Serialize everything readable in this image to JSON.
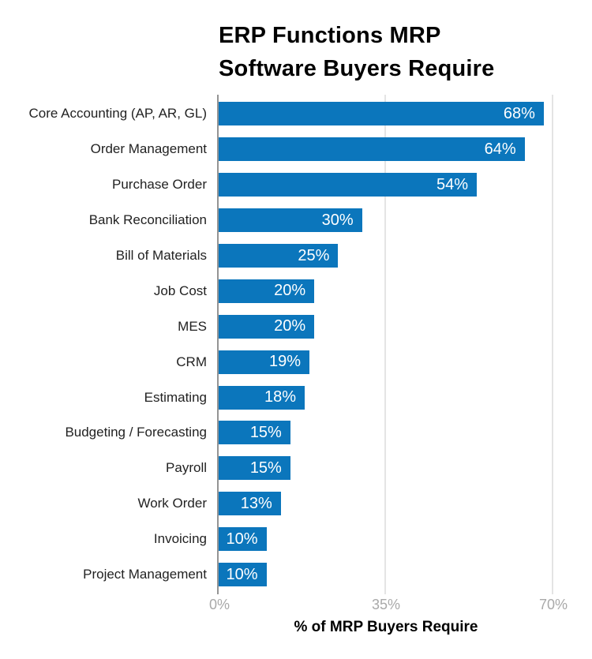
{
  "title": {
    "line1": "ERP Functions MRP",
    "line2": "Software Buyers Require"
  },
  "chart_data": {
    "type": "bar",
    "orientation": "horizontal",
    "title": "ERP Functions MRP Software Buyers Require",
    "categories": [
      "Core Accounting (AP, AR, GL)",
      "Order Management",
      "Purchase Order",
      "Bank Reconciliation",
      "Bill of Materials",
      "Job Cost",
      "MES",
      "CRM",
      "Estimating",
      "Budgeting / Forecasting",
      "Payroll",
      "Work Order",
      "Invoicing",
      "Project Management"
    ],
    "values": [
      68,
      64,
      54,
      30,
      25,
      20,
      20,
      19,
      18,
      15,
      15,
      13,
      10,
      10
    ],
    "value_labels": [
      "68%",
      "64%",
      "54%",
      "30%",
      "25%",
      "20%",
      "20%",
      "19%",
      "18%",
      "15%",
      "15%",
      "13%",
      "10%",
      "10%"
    ],
    "xlabel": "% of MRP Buyers Require",
    "xlim": [
      0,
      70
    ],
    "xticks": [
      "0%",
      "35%",
      "70%"
    ],
    "grid": "vertical-gridlines-at-35-and-70",
    "legend": "none",
    "bar_color": "#0B76BC",
    "value_label_color": "#FFFFFF",
    "axis_line_color": "#949494",
    "gridline_color": "#E4E4E4",
    "tick_label_color": "#A9A9A9"
  }
}
